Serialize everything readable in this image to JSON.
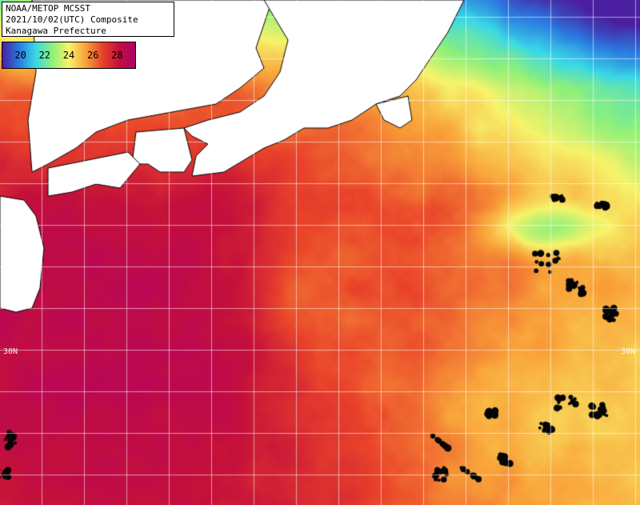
{
  "title": {
    "line1": "NOAA/METOP MCSST",
    "line2": "2021/10/02(UTC) Composite",
    "line3": "Kanagawa Prefecture"
  },
  "legend": {
    "ticks": [
      "20",
      "22",
      "24",
      "26",
      "28"
    ],
    "tick_values": [
      20,
      22,
      24,
      26,
      28
    ],
    "range": [
      18.5,
      29.5
    ],
    "colors": [
      "#4a1fa0",
      "#2a7ae0",
      "#39d8e6",
      "#8ef07a",
      "#f7f36a",
      "#f9a43a",
      "#e9442a",
      "#c4103a",
      "#b0006a"
    ]
  },
  "latitude_labels": {
    "left": "30N",
    "right": "30N"
  },
  "map_colors": {
    "land": "#ffffff",
    "cloud": "#050505",
    "grid": "#ffffff"
  },
  "icons": {
    "map": "sea-surface-temperature-map"
  }
}
